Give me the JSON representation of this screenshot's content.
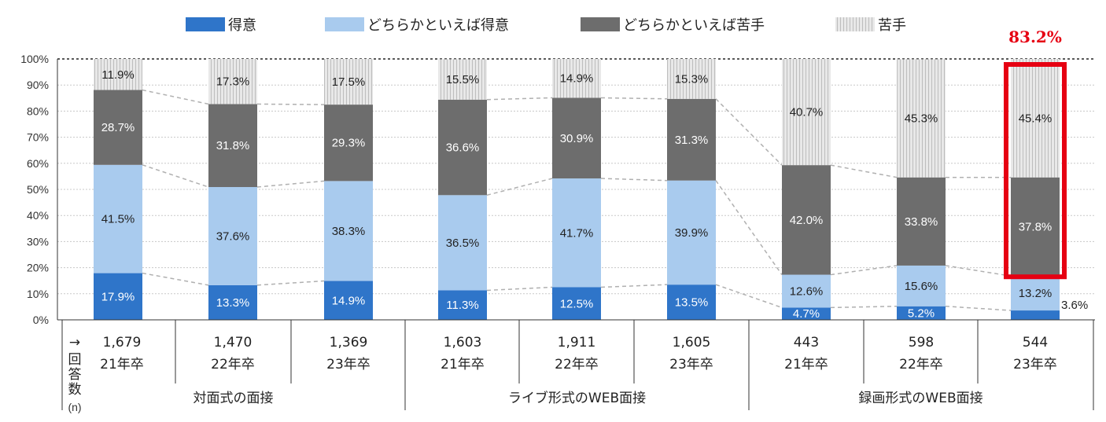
{
  "chart_data": {
    "type": "bar",
    "stacked": true,
    "percent_stacked": true,
    "title": "",
    "ylabel": "",
    "xlabel": "",
    "ylim": [
      0,
      100
    ],
    "yticks": [
      "0%",
      "10%",
      "20%",
      "30%",
      "40%",
      "50%",
      "60%",
      "70%",
      "80%",
      "90%",
      "100%"
    ],
    "legend_position": "top-center",
    "series": [
      {
        "name": "得意",
        "color": "#2f75c9",
        "values": [
          17.9,
          13.3,
          14.9,
          11.3,
          12.5,
          13.5,
          4.7,
          5.2,
          3.6
        ]
      },
      {
        "name": "どちらかといえば得意",
        "color": "#a9cbee",
        "values": [
          41.5,
          37.6,
          38.3,
          36.5,
          41.7,
          39.9,
          12.6,
          15.6,
          13.2
        ]
      },
      {
        "name": "どちらかといえば苦手",
        "color": "#6d6d6d",
        "values": [
          28.7,
          31.8,
          29.3,
          36.6,
          30.9,
          31.3,
          42.0,
          33.8,
          37.8
        ]
      },
      {
        "name": "苦手",
        "color": "#e3e3e3",
        "values": [
          11.9,
          17.3,
          17.5,
          15.5,
          14.9,
          15.3,
          40.7,
          45.3,
          45.4
        ]
      }
    ],
    "labels": [
      [
        "17.9%",
        "13.3%",
        "14.9%",
        "11.3%",
        "12.5%",
        "13.5%",
        "4.7%",
        "5.2%",
        "3.6%"
      ],
      [
        "41.5%",
        "37.6%",
        "38.3%",
        "36.5%",
        "41.7%",
        "39.9%",
        "12.6%",
        "15.6%",
        "13.2%"
      ],
      [
        "28.7%",
        "31.8%",
        "29.3%",
        "36.6%",
        "30.9%",
        "31.3%",
        "42.0%",
        "33.8%",
        "37.8%"
      ],
      [
        "11.9%",
        "17.3%",
        "17.5%",
        "15.5%",
        "14.9%",
        "15.3%",
        "40.7%",
        "45.3%",
        "45.4%"
      ]
    ],
    "categories": [
      {
        "n": "1,679",
        "year": "21年卒"
      },
      {
        "n": "1,470",
        "year": "22年卒"
      },
      {
        "n": "1,369",
        "year": "23年卒"
      },
      {
        "n": "1,603",
        "year": "21年卒"
      },
      {
        "n": "1,911",
        "year": "22年卒"
      },
      {
        "n": "1,605",
        "year": "23年卒"
      },
      {
        "n": "443",
        "year": "21年卒"
      },
      {
        "n": "598",
        "year": "22年卒"
      },
      {
        "n": "544",
        "year": "23年卒"
      }
    ],
    "groups": [
      {
        "label": "対面式の面接",
        "span": [
          0,
          2
        ]
      },
      {
        "label": "ライブ形式のWEB面接",
        "span": [
          3,
          5
        ]
      },
      {
        "label": "録画形式のWEB面接",
        "span": [
          6,
          8
        ]
      }
    ],
    "row_header": {
      "arrow": "→",
      "chars": [
        "回",
        "答",
        "数"
      ],
      "unit": "(n)"
    },
    "highlight": {
      "category_index": 8,
      "label": "83.2%",
      "color": "#e60012"
    }
  }
}
